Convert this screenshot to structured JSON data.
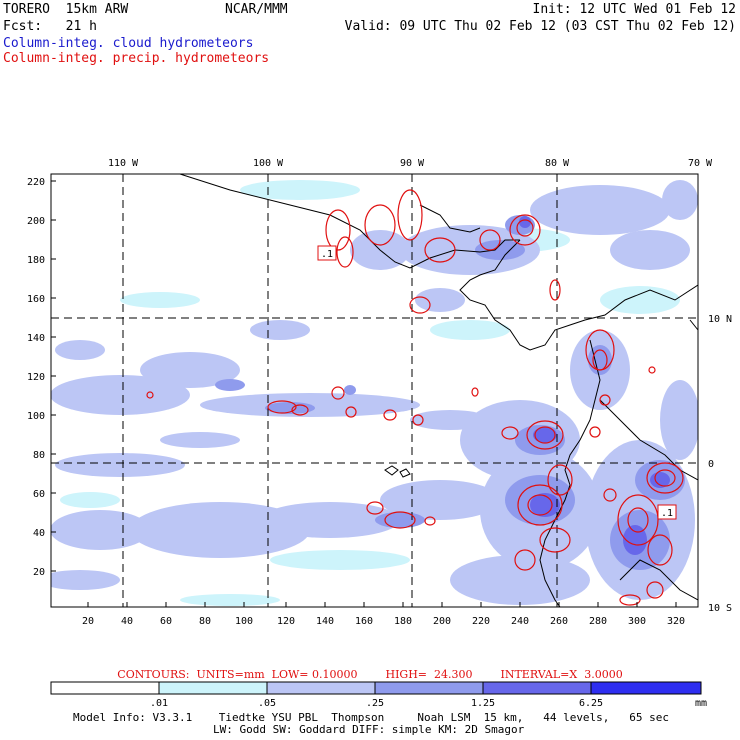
{
  "header": {
    "model": "TORERO  15km ARW",
    "org": "NCAR/MMM",
    "init": "Init: 12 UTC Wed 01 Feb 12",
    "fcst": "Fcst:   21 h",
    "valid": "Valid: 09 UTC Thu 02 Feb 12 (03 CST Thu 02 Feb 12)",
    "legend_cloud": "Column-integ. cloud hydrometeors",
    "legend_precip": "Column-integ. precip. hydrometeors"
  },
  "colors": {
    "cloud_text": "#1a1acd",
    "precip_text": "#e01010",
    "shade_1": "#cdf4fb",
    "shade_2": "#bcc6f5",
    "shade_3": "#8f9bed",
    "shade_4": "#6767ea",
    "shade_5": "#2e2ef0"
  },
  "map": {
    "top_lon_labels": [
      "110 W",
      "100 W",
      "90 W",
      "80 W",
      "70 W"
    ],
    "right_lat_labels": [
      "10 N",
      "0",
      "10 S"
    ],
    "y_ticks": [
      "220",
      "200",
      "180",
      "160",
      "140",
      "120",
      "100",
      "80",
      "60",
      "40",
      "20"
    ],
    "x_ticks": [
      "20",
      "40",
      "60",
      "80",
      "100",
      "120",
      "140",
      "160",
      "180",
      "200",
      "220",
      "240",
      "260",
      "280",
      "300",
      "320"
    ],
    "contour_labels": [
      ".1",
      ".1"
    ]
  },
  "contour_info": {
    "units": "CONTOURS:  UNITS=mm  LOW= 0.10000",
    "high": "HIGH=  24.300",
    "interval": "INTERVAL=X  3.0000"
  },
  "colorbar": {
    "labels": [
      ".01",
      ".05",
      ".25",
      "1.25",
      "6.25"
    ],
    "unit": "mm"
  },
  "model_info": {
    "line1": "Model Info: V3.3.1    Tiedtke YSU PBL  Thompson     Noah LSM  15 km,   44 levels,   65 sec",
    "line2": "LW: Godd SW: Goddard DIFF: simple KM: 2D Smagor"
  }
}
